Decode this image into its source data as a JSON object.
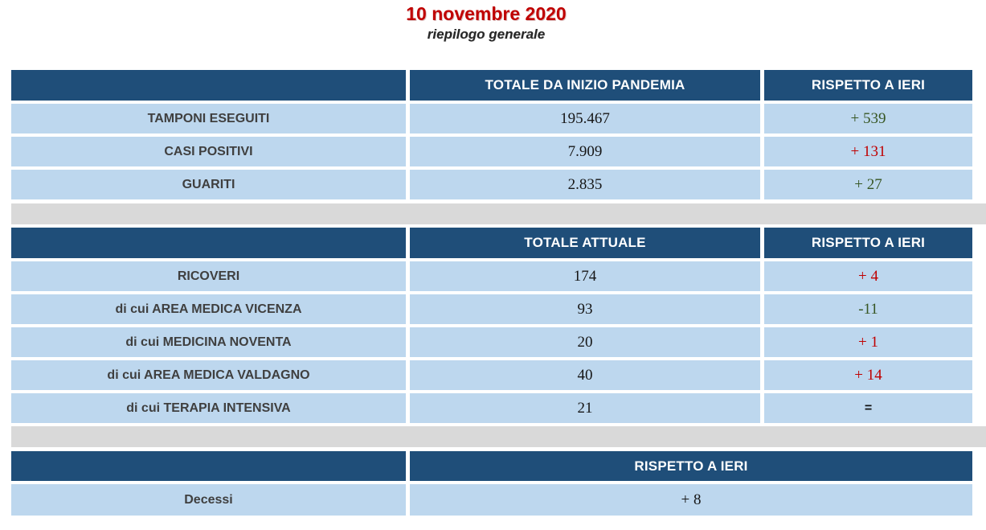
{
  "page": {
    "title": "10 novembre 2020",
    "subtitle": "riepilogo generale"
  },
  "colors": {
    "header_bg": "#1F4E79",
    "row_bg": "#BDD7EE",
    "spacer_bg": "#D9D9D9",
    "title_red": "#C00000",
    "delta_increase_red": "#C00000",
    "delta_decrease_green": "#375623",
    "label_text": "#3f3f3f",
    "value_text": "#161616",
    "header_text": "#ffffff"
  },
  "table_pandemic": {
    "col2_header": "TOTALE DA INIZIO PANDEMIA",
    "col3_header": "RISPETTO A IERI",
    "rows": [
      {
        "label": "TAMPONI ESEGUITI",
        "value": "195.467",
        "delta": "+ 539",
        "delta_class": "delta green"
      },
      {
        "label": "CASI POSITIVI",
        "value": "7.909",
        "delta": "+ 131",
        "delta_class": "delta red"
      },
      {
        "label": "GUARITI",
        "value": "2.835",
        "delta": "+ 27",
        "delta_class": "delta green"
      }
    ]
  },
  "table_current": {
    "col2_header": "TOTALE ATTUALE",
    "col3_header": "RISPETTO A IERI",
    "rows": [
      {
        "label": "RICOVERI",
        "value": "174",
        "delta": "+ 4",
        "delta_class": "delta red"
      },
      {
        "label": "di cui AREA MEDICA VICENZA",
        "value": "93",
        "delta": "-11",
        "delta_class": "delta green"
      },
      {
        "label": "di cui MEDICINA NOVENTA",
        "value": "20",
        "delta": "+ 1",
        "delta_class": "delta red"
      },
      {
        "label": "di cui AREA MEDICA VALDAGNO",
        "value": "40",
        "delta": "+ 14",
        "delta_class": "delta red"
      },
      {
        "label": "di cui TERAPIA INTENSIVA",
        "value": "21",
        "delta": "=",
        "delta_class": "delta equal"
      }
    ]
  },
  "table_deaths": {
    "col_header": "RISPETTO A IERI",
    "rows": [
      {
        "label": "Decessi",
        "delta": "+ 8",
        "delta_class": "delta plain"
      }
    ]
  }
}
